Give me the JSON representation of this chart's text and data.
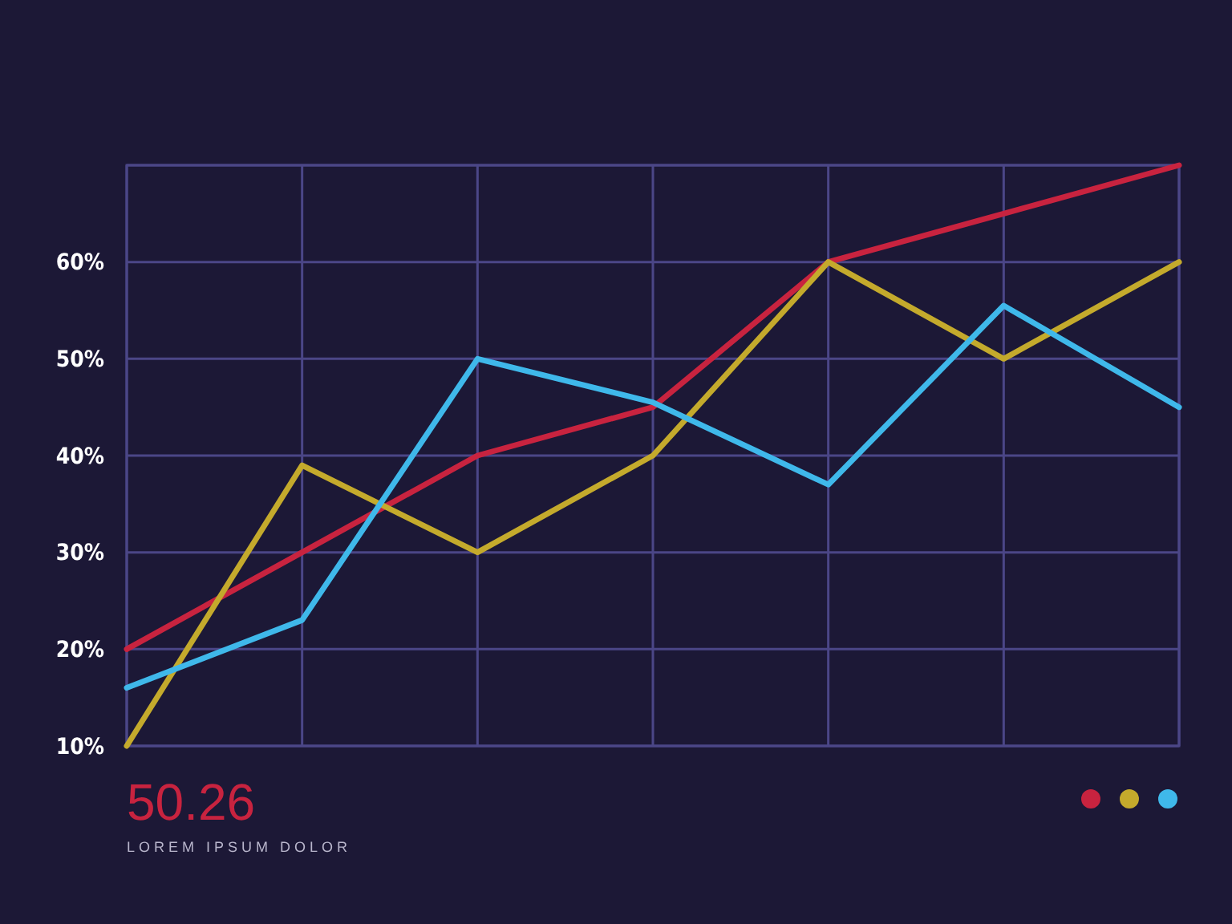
{
  "chart_data": {
    "type": "line",
    "categories": [
      null,
      null,
      null,
      null,
      null,
      null,
      null
    ],
    "series": [
      {
        "color": "#c8233f",
        "values": [
          20,
          30,
          40,
          45,
          60,
          65,
          70
        ]
      },
      {
        "color": "#c4aa2c",
        "values": [
          10,
          39,
          30,
          40,
          60,
          50,
          60
        ]
      },
      {
        "color": "#3fb8ea",
        "values": [
          16,
          23,
          50,
          45.5,
          37,
          55.5,
          45
        ]
      }
    ],
    "ylim": [
      10,
      70
    ],
    "yticks": [
      {
        "value": 10,
        "label": "10%"
      },
      {
        "value": 20,
        "label": "20%"
      },
      {
        "value": 30,
        "label": "30%"
      },
      {
        "value": 40,
        "label": "40%"
      },
      {
        "value": 50,
        "label": "50%"
      },
      {
        "value": 60,
        "label": "60%"
      },
      {
        "value": 70,
        "label": null
      }
    ],
    "grid": true,
    "marker": "none",
    "line_style": "solid",
    "annotations": [
      "50.26",
      "LOREM IPSUM DOLOR"
    ]
  }
}
